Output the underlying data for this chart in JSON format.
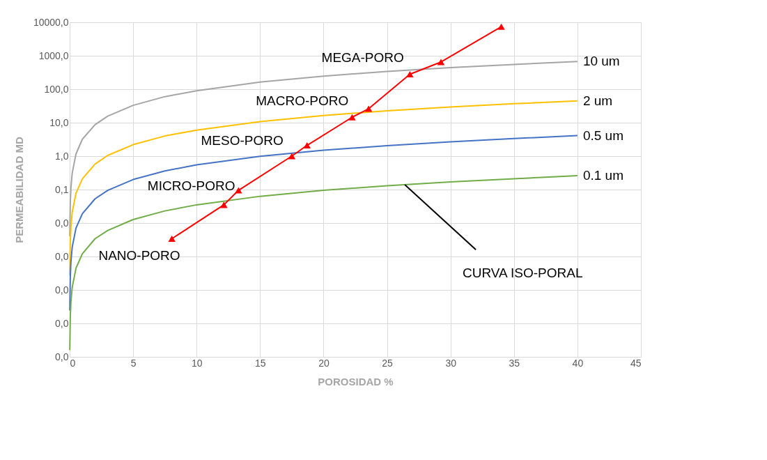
{
  "chart_data": {
    "type": "line",
    "xlabel": "POROSIDAD %",
    "ylabel": "PERMEABILIDAD MD",
    "log": "y",
    "xlim": [
      0,
      45
    ],
    "xticks": [
      0,
      5,
      10,
      15,
      20,
      25,
      30,
      35,
      40,
      45
    ],
    "ylim": [
      1e-06,
      10000
    ],
    "yticks": [
      {
        "value": 10000,
        "label": "10000,0"
      },
      {
        "value": 1000,
        "label": "1000,0"
      },
      {
        "value": 100,
        "label": "100,0"
      },
      {
        "value": 10,
        "label": "10,0"
      },
      {
        "value": 1,
        "label": "1,0"
      },
      {
        "value": 0.1,
        "label": "0,1"
      },
      {
        "value": 0.01,
        "label": "0,0"
      },
      {
        "value": 0.001,
        "label": "0,0"
      },
      {
        "value": 0.0001,
        "label": "0,0"
      },
      {
        "value": 1e-05,
        "label": "0,0"
      },
      {
        "value": 1e-06,
        "label": "0,0"
      }
    ],
    "grid": true,
    "marker": "none",
    "line_style": "solid",
    "series": [
      {
        "name": "10 um",
        "color": "#a5a5a5",
        "x": [
          0.01,
          0.05,
          0.1,
          0.2,
          0.5,
          1,
          2,
          3,
          5,
          7.5,
          10,
          15,
          20,
          25,
          30,
          35,
          40
        ],
        "values": [
          0.004,
          0.042,
          0.11,
          0.31,
          1.17,
          3.2,
          8.7,
          15.7,
          33,
          60,
          90,
          163,
          247,
          340,
          442,
          552,
          675
        ]
      },
      {
        "name": "2 um",
        "color": "#ffc000",
        "x": [
          0.01,
          0.05,
          0.1,
          0.2,
          0.5,
          1,
          2,
          3,
          5,
          7.5,
          10,
          15,
          20,
          25,
          30,
          35,
          40
        ],
        "values": [
          0.00027,
          0.0028,
          0.0076,
          0.021,
          0.078,
          0.21,
          0.58,
          1.05,
          2.2,
          4.0,
          6.0,
          10.8,
          16.4,
          22.6,
          29.4,
          36.8,
          45
        ]
      },
      {
        "name": "0.5 um",
        "color": "#4472c4",
        "x": [
          0.01,
          0.05,
          0.1,
          0.2,
          0.5,
          1,
          2,
          3,
          5,
          7.5,
          10,
          15,
          20,
          25,
          30,
          35,
          40
        ],
        "values": [
          2.44e-05,
          0.00025,
          0.00069,
          0.0019,
          0.0071,
          0.019,
          0.053,
          0.095,
          0.2,
          0.36,
          0.55,
          0.99,
          1.5,
          2.05,
          2.67,
          3.35,
          4.1
        ]
      },
      {
        "name": "0.1 um",
        "color": "#70ad47",
        "x": [
          0.01,
          0.05,
          0.1,
          0.2,
          0.5,
          1,
          2,
          3,
          5,
          7.5,
          10,
          15,
          20,
          25,
          30,
          35,
          40
        ],
        "values": [
          1.6e-06,
          1.6e-05,
          4.4e-05,
          0.00012,
          0.00045,
          0.0012,
          0.0034,
          0.006,
          0.0127,
          0.023,
          0.035,
          0.063,
          0.095,
          0.13,
          0.17,
          0.21,
          0.26
        ]
      },
      {
        "color": "#ff0000",
        "marker": "triangle",
        "x": [
          8.05,
          12.15,
          13.3,
          17.5,
          18.7,
          22.25,
          23.55,
          26.8,
          29.25,
          34
        ],
        "values": [
          0.0034,
          0.035,
          0.095,
          1.0,
          2.1,
          14.5,
          26,
          280,
          650,
          7400
        ]
      },
      {
        "color": "#000000",
        "marker": "none",
        "x": [
          26.4,
          32
        ],
        "values": [
          0.14,
          0.0016
        ]
      }
    ],
    "annotations": [
      "MEGA-PORO",
      "MACRO-PORO",
      "MESO-PORO",
      "MICRO-PORO",
      "NANO-PORO",
      "CURVA ISO-PORAL"
    ]
  }
}
